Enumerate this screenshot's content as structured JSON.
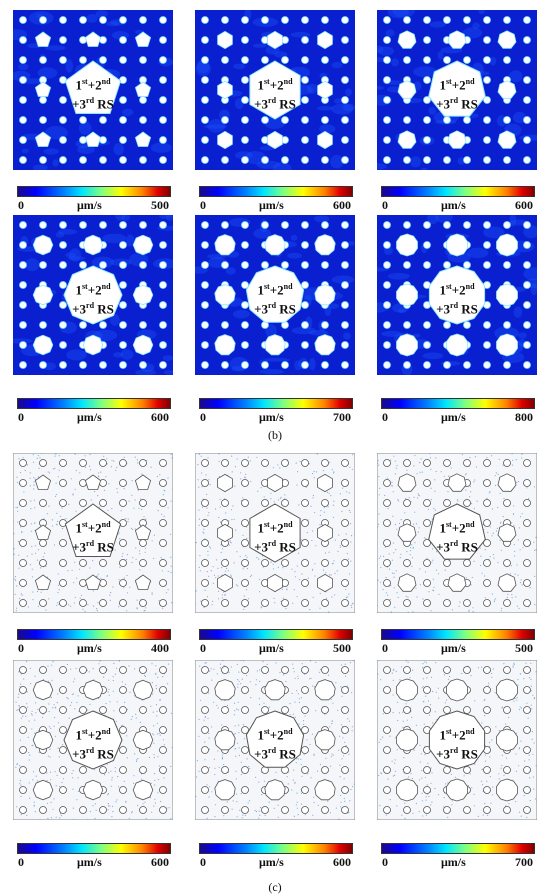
{
  "captions": {
    "b": "(b)",
    "c": "(c)"
  },
  "rs_label": {
    "line1_a": "1",
    "sup1": "st",
    "line1_b": "+2",
    "sup2": "nd",
    "line2_a": "+3",
    "sup3": "rd",
    "line2_b": " RS"
  },
  "unit": "μm/s",
  "colors": {
    "field_bg": "#0a1fd0",
    "stream_bg": "#f4f6fa",
    "stream_dot": "#7ab6e6"
  },
  "rows": [
    {
      "style": "velocity",
      "panels": [
        {
          "sides": 5,
          "cmin": "0",
          "cmax": "500"
        },
        {
          "sides": 6,
          "cmin": "0",
          "cmax": "600"
        },
        {
          "sides": 7,
          "cmin": "0",
          "cmax": "600"
        }
      ]
    },
    {
      "style": "velocity",
      "panels": [
        {
          "sides": 8,
          "cmin": "0",
          "cmax": "600"
        },
        {
          "sides": 9,
          "cmin": "0",
          "cmax": "700"
        },
        {
          "sides": 10,
          "cmin": "0",
          "cmax": "800"
        }
      ]
    },
    {
      "style": "streamline",
      "panels": [
        {
          "sides": 5,
          "cmin": "0",
          "cmax": "400"
        },
        {
          "sides": 6,
          "cmin": "0",
          "cmax": "500"
        },
        {
          "sides": 7,
          "cmin": "0",
          "cmax": "500"
        }
      ]
    },
    {
      "style": "streamline",
      "panels": [
        {
          "sides": 8,
          "cmin": "0",
          "cmax": "600"
        },
        {
          "sides": 9,
          "cmin": "0",
          "cmax": "600"
        },
        {
          "sides": 10,
          "cmin": "0",
          "cmax": "700"
        }
      ]
    }
  ]
}
